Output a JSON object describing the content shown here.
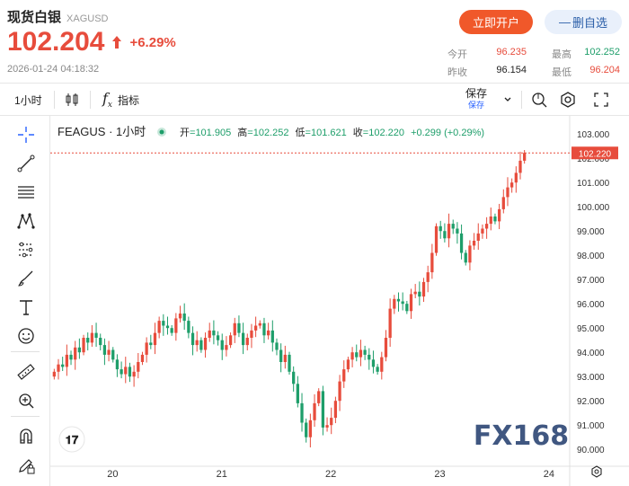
{
  "header": {
    "title": "现货白银",
    "code": "XAGUSD",
    "price": "102.204",
    "change_pct": "+6.29%",
    "timestamp": "2026-01-24 04:18:32",
    "open_account_label": "立即开户",
    "remove_watch_label": "删自选",
    "remove_watch_prefix": "—",
    "stats": {
      "open_label": "今开",
      "open_value": "96.235",
      "high_label": "最高",
      "high_value": "102.252",
      "prev_close_label": "昨收",
      "prev_close_value": "96.154",
      "low_label": "最低",
      "low_value": "96.204"
    },
    "colors": {
      "up": "#e74c3c",
      "down": "#1e9e6a",
      "accent": "#f0582a"
    }
  },
  "toolbar": {
    "interval": "1小时",
    "indicators_label": "指标",
    "fx_label": "f",
    "fx_sub": "x",
    "save_label": "保存",
    "save_sub": "保存"
  },
  "chart_data": {
    "type": "candlestick",
    "symbol": "FEAGUS",
    "interval": "1小时",
    "ohlc_legend": {
      "open_label": "开",
      "open": "101.905",
      "high_label": "高",
      "high": "102.252",
      "low_label": "低",
      "low": "101.621",
      "close_label": "收",
      "close": "102.220",
      "change": "+0.299 (+0.29%)"
    },
    "last_price_label": "102.220",
    "last_price": 102.22,
    "y_ticks": [
      "103.000",
      "102.000",
      "101.000",
      "100.000",
      "99.000",
      "98.000",
      "97.000",
      "96.000",
      "95.000",
      "94.000",
      "93.000",
      "92.000",
      "91.000",
      "90.000"
    ],
    "ylim": [
      89.6,
      103.6
    ],
    "x_ticks": [
      {
        "label": "20",
        "pos": 0.12
      },
      {
        "label": "21",
        "pos": 0.33
      },
      {
        "label": "22",
        "pos": 0.54
      },
      {
        "label": "23",
        "pos": 0.75
      },
      {
        "label": "24",
        "pos": 0.96
      }
    ],
    "closes": [
      93.2,
      93.5,
      93.4,
      93.9,
      93.7,
      94.2,
      94.0,
      94.6,
      94.4,
      94.8,
      94.6,
      94.3,
      93.9,
      94.1,
      93.7,
      93.3,
      93.1,
      93.4,
      93.0,
      93.2,
      93.6,
      93.9,
      94.4,
      94.3,
      94.8,
      95.3,
      95.1,
      95.0,
      94.8,
      95.4,
      95.6,
      95.3,
      94.8,
      94.3,
      94.5,
      94.1,
      94.6,
      94.9,
      94.7,
      94.5,
      94.1,
      94.3,
      94.7,
      95.2,
      94.8,
      94.3,
      94.6,
      94.9,
      95.1,
      95.2,
      94.7,
      94.9,
      94.4,
      94.1,
      93.6,
      93.9,
      93.2,
      92.7,
      91.9,
      91.1,
      90.5,
      91.2,
      91.9,
      92.4,
      90.9,
      91.0,
      91.3,
      92.0,
      92.8,
      93.3,
      93.7,
      94.0,
      93.8,
      94.1,
      93.9,
      93.7,
      93.4,
      93.2,
      93.8,
      94.6,
      95.8,
      96.2,
      96.1,
      96.0,
      95.7,
      96.4,
      96.5,
      96.3,
      96.9,
      97.3,
      98.1,
      99.2,
      99.0,
      98.7,
      99.3,
      99.1,
      98.9,
      98.1,
      97.7,
      98.4,
      98.6,
      98.9,
      99.1,
      99.3,
      99.6,
      99.4,
      99.9,
      100.4,
      100.8,
      101.0,
      101.4,
      101.9,
      102.22
    ],
    "watermark": "FX168"
  }
}
